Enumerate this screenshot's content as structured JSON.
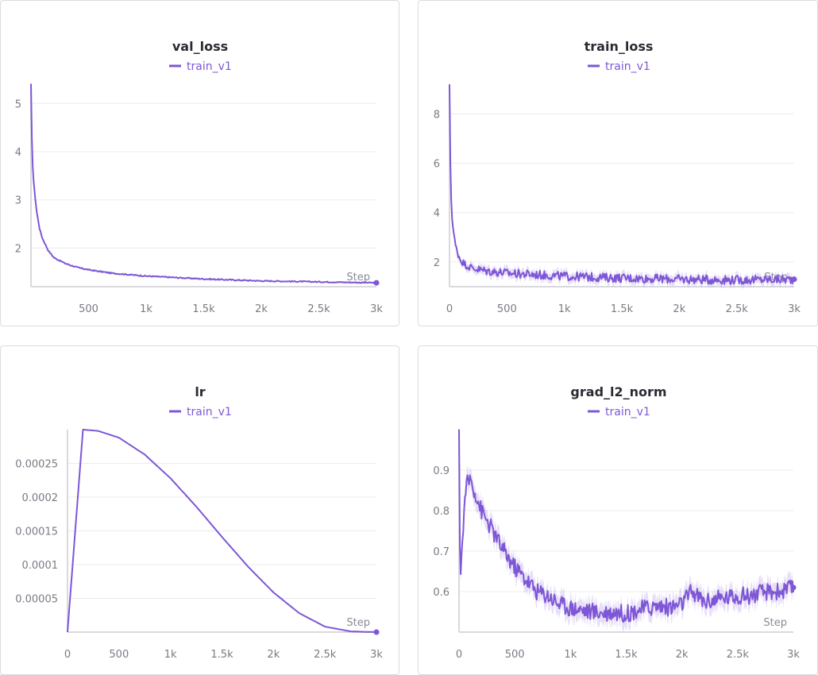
{
  "colors": {
    "series": "#7e57d6",
    "band": "#b9a4ec"
  },
  "chart_data": [
    {
      "type": "line",
      "title": "val_loss",
      "xlabel": "Step",
      "legend": [
        "train_v1"
      ],
      "xlim": [
        0,
        3000
      ],
      "ylim": [
        1.2,
        5.4
      ],
      "xticks": [
        500,
        1000,
        1500,
        2000,
        2500,
        3000
      ],
      "xtick_labels": [
        "500",
        "1k",
        "1.5k",
        "2k",
        "2.5k",
        "3k"
      ],
      "yticks": [
        2,
        3,
        4,
        5
      ],
      "ytick_labels": [
        "2",
        "3",
        "4",
        "5"
      ],
      "series": [
        {
          "name": "train_v1",
          "x": [
            0,
            10,
            25,
            50,
            75,
            100,
            150,
            200,
            300,
            400,
            500,
            700,
            1000,
            1500,
            2000,
            2500,
            3000
          ],
          "y": [
            5.4,
            3.9,
            3.3,
            2.75,
            2.4,
            2.2,
            1.95,
            1.8,
            1.68,
            1.6,
            1.55,
            1.48,
            1.42,
            1.36,
            1.32,
            1.3,
            1.28
          ]
        }
      ],
      "grid": true
    },
    {
      "type": "line",
      "title": "train_loss",
      "xlabel": "Step",
      "legend": [
        "train_v1"
      ],
      "xlim": [
        0,
        3000
      ],
      "ylim": [
        1.0,
        9.2
      ],
      "xticks": [
        0,
        500,
        1000,
        1500,
        2000,
        2500,
        3000
      ],
      "xtick_labels": [
        "0",
        "500",
        "1k",
        "1.5k",
        "2k",
        "2.5k",
        "3k"
      ],
      "yticks": [
        2,
        4,
        6,
        8
      ],
      "ytick_labels": [
        "2",
        "4",
        "6",
        "8"
      ],
      "series": [
        {
          "name": "train_v1",
          "x": [
            0,
            10,
            25,
            50,
            75,
            100,
            150,
            200,
            300,
            500,
            700,
            1000,
            1500,
            2000,
            2500,
            3000
          ],
          "y": [
            9.1,
            5.0,
            3.6,
            2.7,
            2.3,
            2.05,
            1.85,
            1.75,
            1.65,
            1.55,
            1.5,
            1.42,
            1.35,
            1.3,
            1.27,
            1.3
          ]
        }
      ],
      "grid": true
    },
    {
      "type": "line",
      "title": "lr",
      "xlabel": "Step",
      "legend": [
        "train_v1"
      ],
      "xlim": [
        0,
        3000
      ],
      "ylim": [
        0,
        0.0003
      ],
      "xticks": [
        0,
        500,
        1000,
        1500,
        2000,
        2500,
        3000
      ],
      "xtick_labels": [
        "0",
        "500",
        "1k",
        "1.5k",
        "2k",
        "2.5k",
        "3k"
      ],
      "yticks": [
        5e-05,
        0.0001,
        0.00015,
        0.0002,
        0.00025
      ],
      "ytick_labels": [
        "0.00005",
        "0.0001",
        "0.00015",
        "0.0002",
        "0.00025"
      ],
      "series": [
        {
          "name": "train_v1",
          "x": [
            0,
            150,
            300,
            500,
            750,
            1000,
            1250,
            1500,
            1750,
            2000,
            2250,
            2500,
            2750,
            3000
          ],
          "y": [
            0,
            0.0003,
            0.000298,
            0.000288,
            0.000263,
            0.000228,
            0.000186,
            0.000141,
            9.75e-05,
            5.88e-05,
            2.81e-05,
            8.1e-06,
            1e-06,
            0
          ]
        }
      ],
      "grid": true
    },
    {
      "type": "line",
      "title": "grad_l2_norm",
      "xlabel": "Step",
      "legend": [
        "train_v1"
      ],
      "xlim": [
        0,
        3000
      ],
      "ylim": [
        0.5,
        1.0
      ],
      "xticks": [
        0,
        500,
        1000,
        1500,
        2000,
        2500,
        3000
      ],
      "xtick_labels": [
        "0",
        "500",
        "1k",
        "1.5k",
        "2k",
        "2.5k",
        "3k"
      ],
      "yticks": [
        0.6,
        0.7,
        0.8,
        0.9
      ],
      "ytick_labels": [
        "0.6",
        "0.7",
        "0.8",
        "0.9"
      ],
      "series": [
        {
          "name": "train_v1",
          "x": [
            0,
            10,
            30,
            60,
            100,
            150,
            200,
            300,
            400,
            500,
            600,
            700,
            800,
            900,
            1000,
            1100,
            1200,
            1300,
            1400,
            1500,
            1600,
            1700,
            1800,
            1900,
            2000,
            2090,
            2200,
            2300,
            2400,
            2500,
            2600,
            2700,
            2800,
            2900,
            3000
          ],
          "y": [
            0.98,
            0.64,
            0.72,
            0.86,
            0.88,
            0.84,
            0.8,
            0.75,
            0.7,
            0.66,
            0.63,
            0.6,
            0.59,
            0.57,
            0.56,
            0.555,
            0.55,
            0.548,
            0.55,
            0.545,
            0.555,
            0.56,
            0.565,
            0.56,
            0.57,
            0.6,
            0.575,
            0.58,
            0.585,
            0.59,
            0.59,
            0.595,
            0.6,
            0.6,
            0.61
          ]
        }
      ],
      "grid": true
    }
  ]
}
